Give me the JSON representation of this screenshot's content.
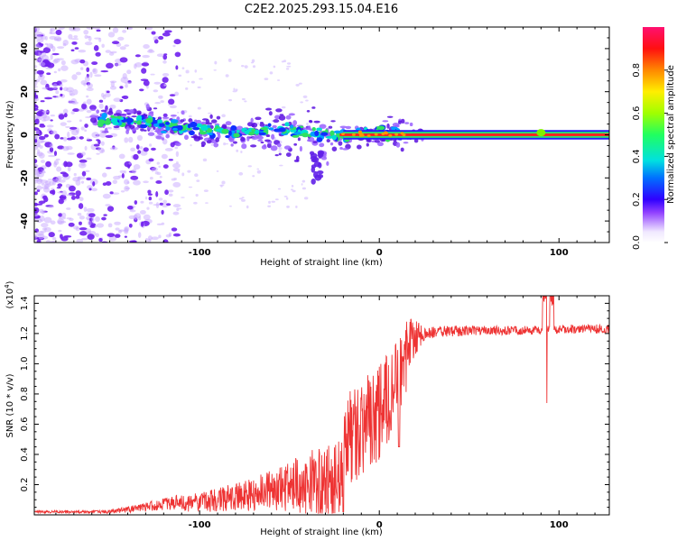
{
  "title": "C2E2.2025.293.15.04.E16",
  "chart_data": [
    {
      "type": "heatmap",
      "name": "spectrogram",
      "xlabel": "Height of straight line (km)",
      "ylabel": "Frequency (Hz)",
      "xlim": [
        -192,
        128
      ],
      "ylim": [
        -50,
        50
      ],
      "xticks": [
        -100,
        0,
        100
      ],
      "yticks": [
        -40,
        -20,
        0,
        20,
        40
      ],
      "colorbar": {
        "label": "Normalized spectral amplitude",
        "range": [
          0.0,
          1.0
        ],
        "ticks": [
          "0.0",
          "0.2",
          "0.4",
          "0.6",
          "0.8"
        ],
        "tick_values": [
          0.0,
          0.2,
          0.4,
          0.6,
          0.8
        ]
      },
      "ridge": {
        "x": [
          -155,
          -145,
          -130,
          -115,
          -100,
          -90,
          -80,
          -70,
          -60,
          -50,
          -40,
          -30,
          -22,
          -10,
          0,
          12,
          50,
          88,
          100,
          128
        ],
        "frequency_hz": [
          6,
          7,
          6,
          4,
          3,
          2,
          1,
          1,
          3,
          2,
          1,
          0,
          -1,
          1,
          1,
          0,
          0,
          0,
          0,
          0
        ]
      }
    },
    {
      "type": "line",
      "name": "snr",
      "xlabel": "Height of straight line (km)",
      "ylabel": "SNR (10 * v/v)",
      "scale_label_base": "(x10",
      "scale_label_exp": "4",
      "scale_label_end": ")",
      "xlim": [
        -192,
        128
      ],
      "ylim": [
        0.0,
        1.45
      ],
      "xticks": [
        -100,
        0,
        100
      ],
      "yticks": [
        0.2,
        0.4,
        0.6,
        0.8,
        1.0,
        1.2,
        1.4
      ],
      "ytick_labels": [
        "0.2",
        "0.4",
        "0.6",
        "0.8",
        "1.0",
        "1.2",
        "1.4"
      ],
      "color": "#ee3333",
      "trend_x": [
        -192,
        -150,
        -130,
        -110,
        -90,
        -70,
        -50,
        -35,
        -25,
        -20,
        -15,
        -10,
        -5,
        0,
        5,
        10,
        15,
        20,
        30,
        50,
        80,
        100,
        128
      ],
      "trend_y": [
        0.02,
        0.02,
        0.05,
        0.09,
        0.13,
        0.18,
        0.25,
        0.3,
        0.3,
        0.55,
        0.65,
        0.72,
        0.78,
        0.82,
        0.9,
        1.0,
        1.1,
        1.18,
        1.21,
        1.22,
        1.22,
        1.23,
        1.23
      ],
      "noise_x": [
        -192,
        -150,
        -120,
        -90,
        -60,
        -40,
        -25,
        -20,
        -10,
        0,
        10,
        15,
        25,
        60,
        128
      ],
      "noise_y": [
        0.008,
        0.01,
        0.04,
        0.07,
        0.12,
        0.2,
        0.25,
        0.3,
        0.3,
        0.3,
        0.25,
        0.2,
        0.04,
        0.03,
        0.03
      ],
      "notable_dips": [
        {
          "x": 93,
          "y": 0.74
        },
        {
          "x": 11,
          "y": 0.45
        },
        {
          "x": -20,
          "y": 0.02
        }
      ]
    }
  ]
}
